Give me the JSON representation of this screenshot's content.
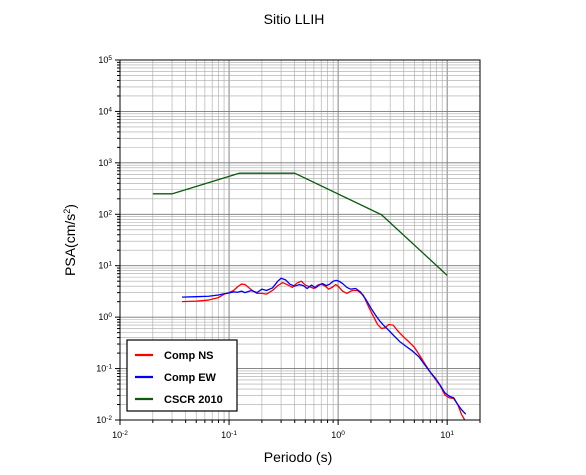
{
  "chart_data": {
    "type": "line",
    "title": "Sitio LLIH",
    "xlabel": "Periodo (s)",
    "ylabel": "PSA(cm/s",
    "ylabel_sup": "2",
    "ylabel_close": ")",
    "x_scale": "log",
    "y_scale": "log",
    "xlim": [
      0.01,
      20
    ],
    "ylim": [
      0.01,
      100000
    ],
    "grid": true,
    "legend_position": "bottom-left",
    "x_ticks": [
      {
        "value": 0.01,
        "base": "10",
        "exp": "-2"
      },
      {
        "value": 0.1,
        "base": "10",
        "exp": "-1"
      },
      {
        "value": 1,
        "base": "10",
        "exp": "0"
      },
      {
        "value": 10,
        "base": "10",
        "exp": "1"
      }
    ],
    "y_ticks": [
      {
        "value": 0.01,
        "base": "10",
        "exp": "-2"
      },
      {
        "value": 0.1,
        "base": "10",
        "exp": "-1"
      },
      {
        "value": 1,
        "base": "10",
        "exp": "0"
      },
      {
        "value": 10,
        "base": "10",
        "exp": "1"
      },
      {
        "value": 100,
        "base": "10",
        "exp": "2"
      },
      {
        "value": 1000,
        "base": "10",
        "exp": "3"
      },
      {
        "value": 10000,
        "base": "10",
        "exp": "4"
      },
      {
        "value": 100000,
        "base": "10",
        "exp": "5"
      }
    ],
    "series": [
      {
        "name": "Comp NS",
        "color": "#ff0000",
        "points": [
          [
            0.037,
            2.0
          ],
          [
            0.05,
            2.05
          ],
          [
            0.065,
            2.15
          ],
          [
            0.08,
            2.4
          ],
          [
            0.09,
            2.8
          ],
          [
            0.1,
            3.0
          ],
          [
            0.11,
            3.3
          ],
          [
            0.12,
            3.9
          ],
          [
            0.13,
            4.4
          ],
          [
            0.14,
            4.3
          ],
          [
            0.16,
            3.4
          ],
          [
            0.18,
            2.9
          ],
          [
            0.2,
            2.9
          ],
          [
            0.22,
            2.8
          ],
          [
            0.25,
            3.3
          ],
          [
            0.28,
            4.1
          ],
          [
            0.31,
            4.7
          ],
          [
            0.34,
            4.3
          ],
          [
            0.38,
            3.8
          ],
          [
            0.42,
            4.6
          ],
          [
            0.46,
            5.0
          ],
          [
            0.5,
            4.2
          ],
          [
            0.55,
            3.9
          ],
          [
            0.6,
            3.6
          ],
          [
            0.65,
            4.2
          ],
          [
            0.7,
            4.4
          ],
          [
            0.76,
            4.0
          ],
          [
            0.82,
            3.5
          ],
          [
            0.9,
            3.9
          ],
          [
            0.95,
            4.3
          ],
          [
            1.0,
            4.0
          ],
          [
            1.1,
            3.2
          ],
          [
            1.2,
            2.9
          ],
          [
            1.35,
            3.3
          ],
          [
            1.5,
            3.3
          ],
          [
            1.7,
            2.7
          ],
          [
            1.9,
            1.6
          ],
          [
            2.1,
            1.05
          ],
          [
            2.3,
            0.72
          ],
          [
            2.5,
            0.6
          ],
          [
            2.7,
            0.62
          ],
          [
            2.9,
            0.72
          ],
          [
            3.2,
            0.7
          ],
          [
            3.5,
            0.55
          ],
          [
            3.9,
            0.43
          ],
          [
            4.4,
            0.34
          ],
          [
            5.0,
            0.26
          ],
          [
            5.6,
            0.18
          ],
          [
            6.3,
            0.12
          ],
          [
            7.0,
            0.085
          ],
          [
            7.8,
            0.062
          ],
          [
            8.7,
            0.045
          ],
          [
            9.6,
            0.03
          ],
          [
            10.5,
            0.027
          ],
          [
            11.5,
            0.026
          ],
          [
            12.5,
            0.02
          ],
          [
            13.5,
            0.013
          ],
          [
            14.5,
            0.01
          ]
        ]
      },
      {
        "name": "Comp EW",
        "color": "#0000ff",
        "points": [
          [
            0.037,
            2.45
          ],
          [
            0.05,
            2.5
          ],
          [
            0.065,
            2.55
          ],
          [
            0.08,
            2.7
          ],
          [
            0.09,
            2.85
          ],
          [
            0.1,
            2.95
          ],
          [
            0.11,
            3.1
          ],
          [
            0.12,
            3.05
          ],
          [
            0.13,
            3.2
          ],
          [
            0.14,
            3.0
          ],
          [
            0.16,
            3.3
          ],
          [
            0.18,
            3.0
          ],
          [
            0.2,
            3.5
          ],
          [
            0.22,
            3.3
          ],
          [
            0.25,
            3.7
          ],
          [
            0.28,
            5.0
          ],
          [
            0.3,
            5.7
          ],
          [
            0.33,
            5.3
          ],
          [
            0.36,
            4.4
          ],
          [
            0.4,
            4.0
          ],
          [
            0.44,
            4.3
          ],
          [
            0.48,
            4.1
          ],
          [
            0.52,
            3.6
          ],
          [
            0.57,
            4.2
          ],
          [
            0.62,
            3.7
          ],
          [
            0.67,
            4.2
          ],
          [
            0.72,
            4.5
          ],
          [
            0.78,
            4.1
          ],
          [
            0.84,
            4.4
          ],
          [
            0.9,
            5.0
          ],
          [
            0.96,
            5.2
          ],
          [
            1.02,
            5.0
          ],
          [
            1.1,
            4.5
          ],
          [
            1.2,
            3.8
          ],
          [
            1.3,
            3.5
          ],
          [
            1.45,
            3.6
          ],
          [
            1.6,
            3.1
          ],
          [
            1.8,
            2.2
          ],
          [
            2.0,
            1.5
          ],
          [
            2.2,
            1.1
          ],
          [
            2.4,
            0.85
          ],
          [
            2.6,
            0.7
          ],
          [
            2.8,
            0.6
          ],
          [
            3.0,
            0.52
          ],
          [
            3.3,
            0.42
          ],
          [
            3.7,
            0.33
          ],
          [
            4.2,
            0.27
          ],
          [
            4.8,
            0.22
          ],
          [
            5.5,
            0.17
          ],
          [
            6.2,
            0.12
          ],
          [
            7.0,
            0.085
          ],
          [
            7.8,
            0.065
          ],
          [
            8.6,
            0.048
          ],
          [
            9.5,
            0.034
          ],
          [
            10.5,
            0.029
          ],
          [
            11.5,
            0.027
          ],
          [
            12.5,
            0.02
          ],
          [
            13.5,
            0.016
          ],
          [
            14.8,
            0.013
          ]
        ]
      },
      {
        "name": "CSCR 2010",
        "color": "#0a5c0a",
        "points": [
          [
            0.02,
            250
          ],
          [
            0.03,
            250
          ],
          [
            0.125,
            630
          ],
          [
            0.4,
            630
          ],
          [
            2.5,
            98
          ],
          [
            10,
            6.5
          ]
        ]
      }
    ]
  }
}
